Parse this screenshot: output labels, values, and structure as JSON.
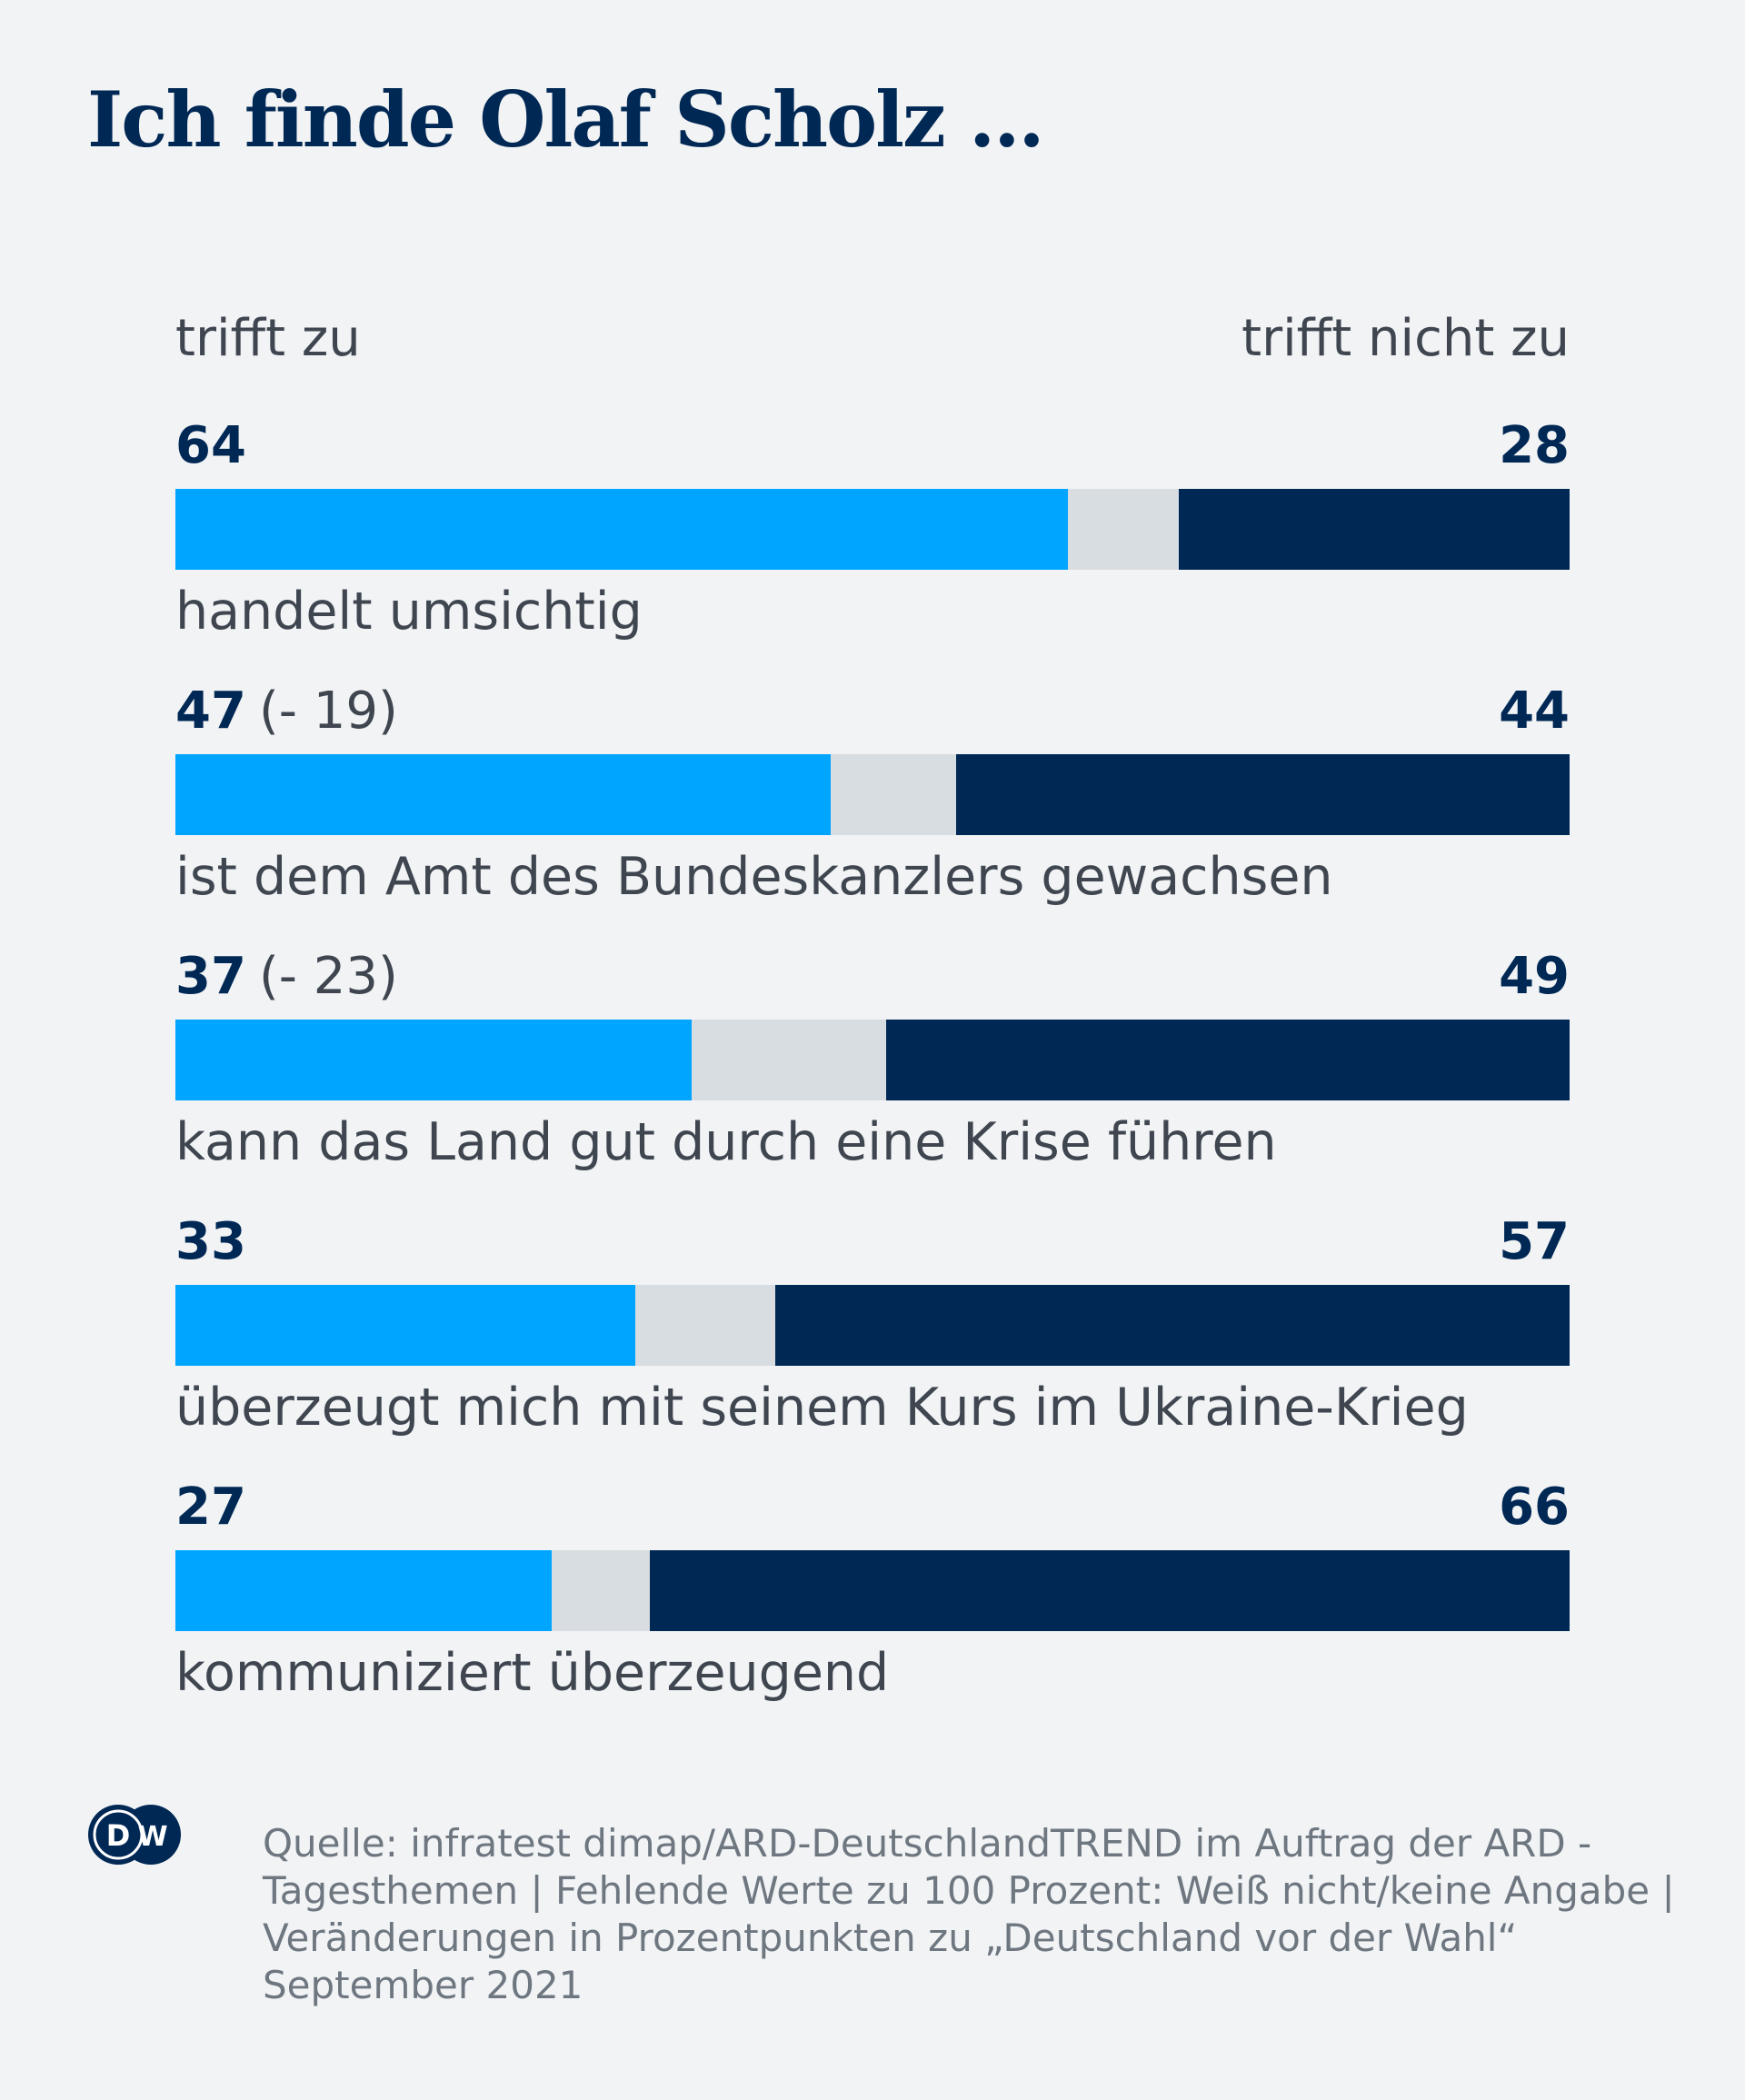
{
  "chart_data": {
    "type": "bar",
    "stacked": true,
    "orientation": "horizontal",
    "title": "Ich finde Olaf Scholz ...",
    "left_header": "trifft zu",
    "right_header": "trifft nicht zu",
    "colors": {
      "agree": "#00a5ff",
      "missing": "#d8dde1",
      "disagree": "#002855"
    },
    "categories": [
      "handelt umsichtig",
      "ist dem Amt des Bundeskanzlers gewachsen",
      "kann das Land gut durch eine Krise führen",
      "überzeugt mich mit seinem Kurs im Ukraine-Krieg",
      "kommuniziert überzeugend"
    ],
    "series": [
      {
        "name": "trifft zu",
        "values": [
          64,
          47,
          37,
          33,
          27
        ]
      },
      {
        "name": "trifft nicht zu",
        "values": [
          28,
          44,
          49,
          57,
          66
        ]
      }
    ],
    "changes": [
      "",
      "(- 19)",
      "(- 23)",
      "",
      ""
    ],
    "xlim": [
      0,
      100
    ]
  },
  "source": "Quelle: infratest dimap/ARD-DeutschlandTREND im Auftrag der ARD - Tagesthemen | Fehlende Werte zu 100 Prozent: Weiß nicht/keine Angabe | Veränderungen in Prozentpunkten zu „Deutschland vor der Wahl“ September 2021",
  "logo": "DW"
}
